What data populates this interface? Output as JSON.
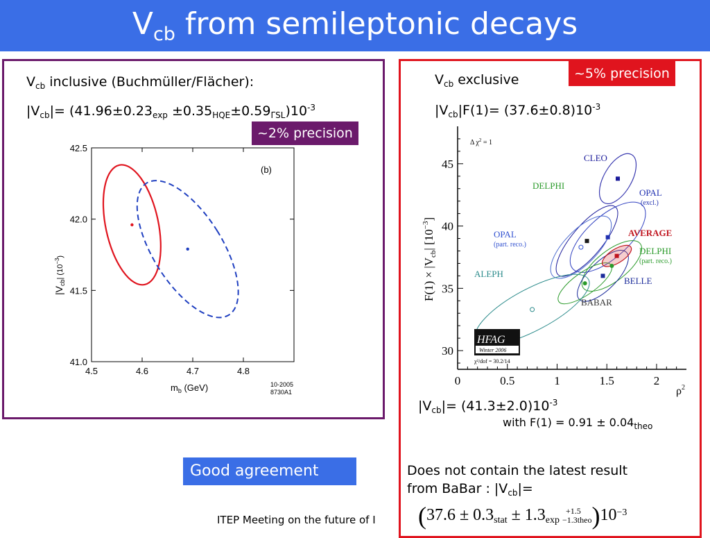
{
  "slide": {
    "title_main": "V",
    "title_sub": "cb",
    "title_rest": " from semileptonic decays",
    "footer": "ITEP Meeting on the future of I"
  },
  "left": {
    "heading_v": "V",
    "heading_sub": "cb",
    "heading_rest": " inclusive (Buchmüller/Flächer):",
    "formula": {
      "a": "|V",
      "a_sub": "cb",
      "b": "|= (41.96±0.23",
      "b_sub": "exp",
      "c": " ±0.35",
      "c_sub": "HQE",
      "d": "±0.59",
      "d_sub": "ΓSL",
      "e": ")10",
      "e_sup": "-3"
    },
    "badge": "~2% precision"
  },
  "right": {
    "heading_v": "V",
    "heading_sub": "cb",
    "heading_rest": " exclusive",
    "formula": {
      "a": "|V",
      "a_sub": "cb",
      "b": "|F(1)= (37.6±0.8)10",
      "b_sup": "-3"
    },
    "badge": "~5% precision",
    "result": {
      "a": "|V",
      "a_sub": "cb",
      "b": "|= (41.3±2.0)10",
      "b_sup": "-3"
    },
    "f1": {
      "a": "with F(1) = 0.91 ± 0.04",
      "a_sub": "theo"
    },
    "note_line1": "Does not contain the latest result",
    "note_line2_a": "from BaBar : |V",
    "note_line2_sub": "cb",
    "note_line2_b": "|=",
    "babar": {
      "central": "37.6 ± 0.3",
      "stat": "stat",
      "pm": " ± 1.3",
      "exp": "exp",
      "up": "+1.5",
      "down": "−1.3theo",
      "power": "10",
      "power_sup": "−3"
    }
  },
  "agreement_badge": "Good agreement",
  "chart_data": [
    {
      "type": "scatter",
      "panel_label": "(b)",
      "xlabel_main": "m",
      "xlabel_sub": "b",
      "xlabel_unit": " (GeV)",
      "ylabel_main": "|V",
      "ylabel_sub": "cb",
      "ylabel_unit": "| (10",
      "ylabel_sup": "−3",
      "ylabel_close": ")",
      "xlim": [
        4.5,
        4.9
      ],
      "ylim": [
        41.0,
        42.5
      ],
      "x_ticks": [
        "4.5",
        "4.6",
        "4.7",
        "4.8"
      ],
      "y_ticks": [
        "41.0",
        "41.5",
        "42.0",
        "42.5"
      ],
      "x_tick_values": [
        4.5,
        4.6,
        4.7,
        4.8
      ],
      "y_tick_values": [
        41.0,
        41.5,
        42.0,
        42.5
      ],
      "series": [
        {
          "color": "#e0141e",
          "style": "solid",
          "center": [
            4.58,
            41.96
          ]
        },
        {
          "color": "#1f3fc0",
          "style": "dashed",
          "center": [
            4.69,
            41.79
          ]
        }
      ],
      "stamp_line1": "10-2005",
      "stamp_line2": "8730A1"
    },
    {
      "type": "scatter",
      "xlabel": "ρ",
      "xlabel_sup": "2",
      "ylabel": "F(1) × |V",
      "ylabel_sub": "cb",
      "ylabel_end": "| [10",
      "ylabel_sup": "−3",
      "ylabel_close": "]",
      "xlim": [
        0,
        2.3
      ],
      "ylim": [
        28.5,
        48
      ],
      "x_ticks": [
        "0",
        "0.5",
        "1",
        "1.5",
        "2"
      ],
      "y_ticks": [
        "30",
        "35",
        "40",
        "45"
      ],
      "x_tick_values": [
        0,
        0.5,
        1,
        1.5,
        2
      ],
      "y_tick_values": [
        30,
        35,
        40,
        45
      ],
      "legend_top": "Δ χ",
      "legend_top_sup": "2",
      "legend_top_rest": " = 1",
      "hfag": "HFAG",
      "hfag_sub": "Winter 2006",
      "chi2": "χ²/dof = 30.2/14",
      "points": [
        {
          "name": "CLEO",
          "x": 1.61,
          "y": 43.8,
          "color": "#1a1a9a"
        },
        {
          "name": "DELPHI",
          "x": 1.3,
          "y": 38.8,
          "color": "#1a1a1a"
        },
        {
          "name": "OPAL",
          "x": 1.51,
          "y": 39.1,
          "color": "#2030b0"
        },
        {
          "name": "OPAL part. reco.",
          "x": 1.24,
          "y": 38.3,
          "color": "#3050d0"
        },
        {
          "name": "AVERAGE",
          "x": 1.6,
          "y": 37.6,
          "color": "#c0141e"
        },
        {
          "name": "DELPHI part. reco.",
          "x": 1.55,
          "y": 36.8,
          "color": "#2a9a2a"
        },
        {
          "name": "BELLE",
          "x": 1.46,
          "y": 36.0,
          "color": "#1a2a9a"
        },
        {
          "name": "BABAR",
          "x": 1.28,
          "y": 35.4,
          "color": "#2a9a2a"
        },
        {
          "name": "ALEPH",
          "x": 0.75,
          "y": 33.3,
          "color": "#2a8a8a"
        }
      ],
      "labels": {
        "cleo": "CLEO",
        "delphi": "DELPHI",
        "opal": "OPAL",
        "opal_excl": "(excl.)",
        "opal_part": "OPAL",
        "opal_part_sub": "(part. reco.)",
        "average": "AVERAGE",
        "delphi_part": "DELPHI",
        "delphi_part_sub": "(part. reco.)",
        "aleph": "ALEPH",
        "belle": "BELLE",
        "babar": "BABAR"
      }
    }
  ]
}
